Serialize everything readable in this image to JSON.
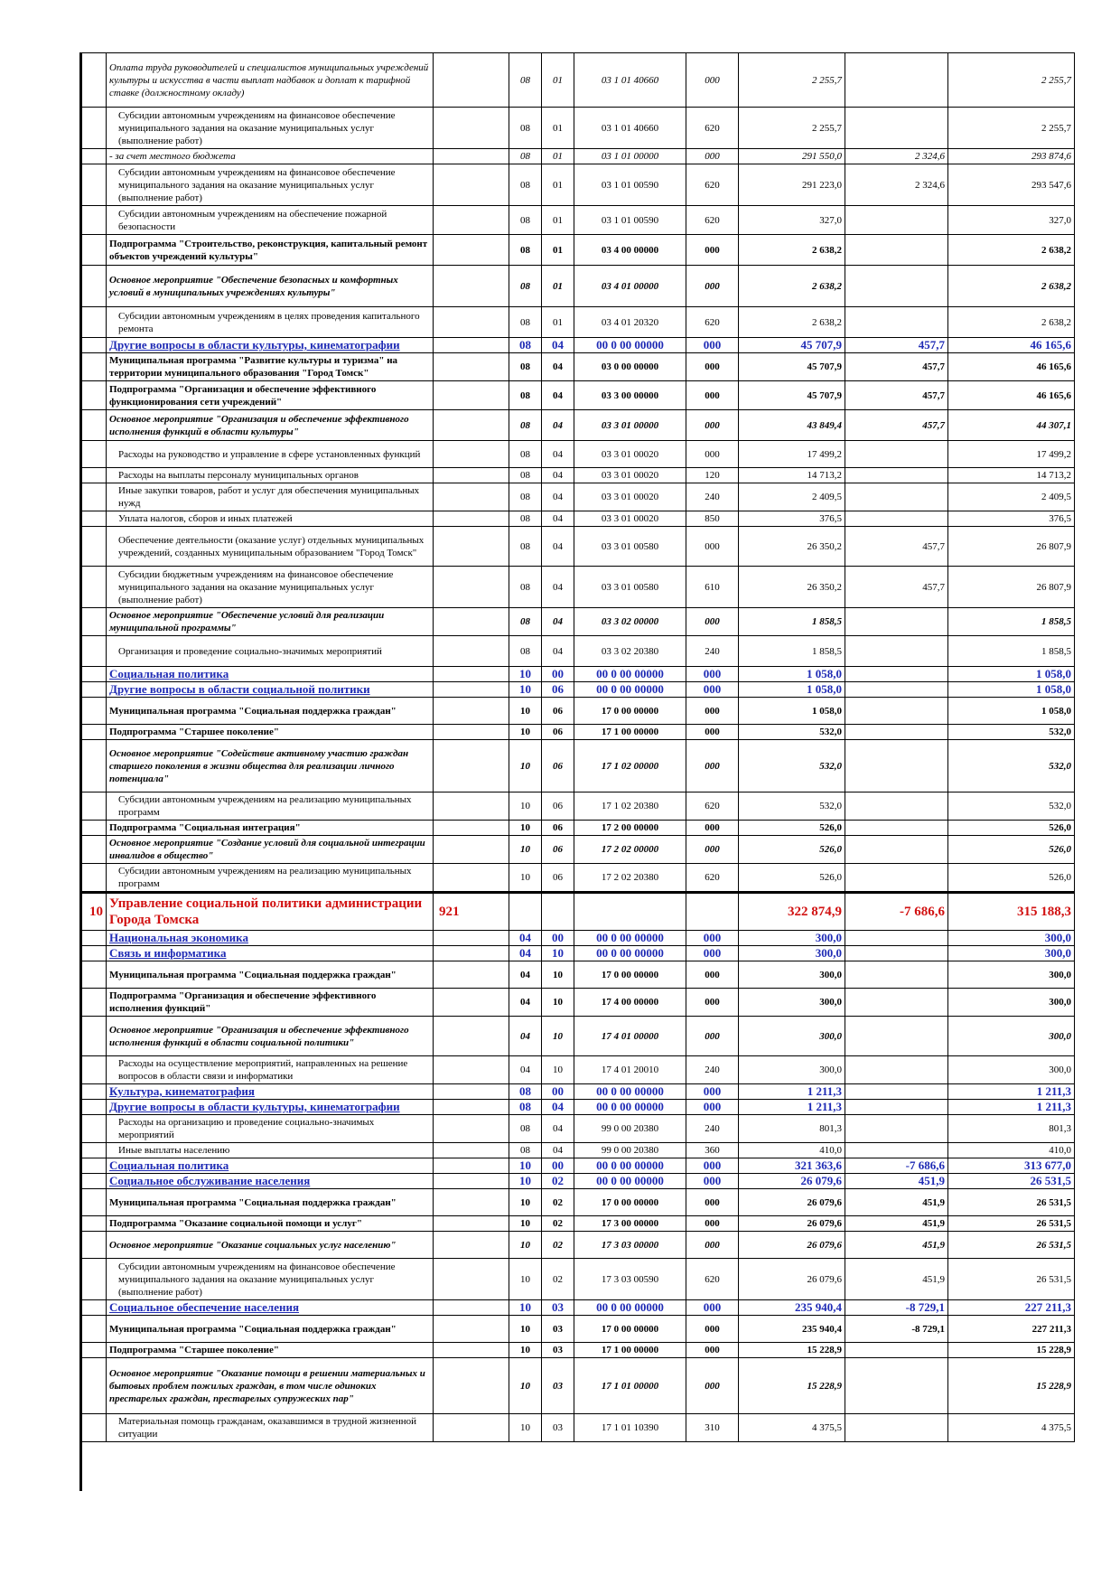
{
  "rows": [
    {
      "style": "it",
      "h": 60,
      "name": "Оплата труда руководителей и специалистов муниципальных учреждений культуры и искусства в части выплат надбавок и доплат к тарифной ставке (должностному окладу)",
      "sec": "08",
      "sub": "01",
      "csr": "03 1 01 40660",
      "vr": "000",
      "a1": "2 255,7",
      "a2": "",
      "a3": "2 255,7"
    },
    {
      "style": "norm",
      "h": 46,
      "name": "Субсидии автономным учреждениям на финансовое обеспечение муниципального задания на оказание муниципальных услуг (выполнение работ)",
      "sec": "08",
      "sub": "01",
      "csr": "03 1 01 40660",
      "vr": "620",
      "a1": "2 255,7",
      "a2": "",
      "a3": "2 255,7"
    },
    {
      "style": "it",
      "h": 16,
      "name": " - за счет местного бюджета",
      "sec": "08",
      "sub": "01",
      "csr": "03 1 01 00000",
      "vr": "000",
      "a1": "291 550,0",
      "a2": "2 324,6",
      "a3": "293 874,6"
    },
    {
      "style": "norm",
      "h": 46,
      "name": "Субсидии автономным учреждениям на финансовое обеспечение муниципального задания на оказание муниципальных услуг (выполнение работ)",
      "sec": "08",
      "sub": "01",
      "csr": "03 1 01 00590",
      "vr": "620",
      "a1": "291 223,0",
      "a2": "2 324,6",
      "a3": "293 547,6"
    },
    {
      "style": "norm",
      "h": 32,
      "name": "Субсидии автономным учреждениям на обеспечение пожарной безопасности",
      "sec": "08",
      "sub": "01",
      "csr": "03 1 01 00590",
      "vr": "620",
      "a1": "327,0",
      "a2": "",
      "a3": "327,0"
    },
    {
      "style": "bold",
      "h": 34,
      "name": "Подпрограмма \"Строительство, реконструкция, капитальный ремонт объектов учреждений культуры\"",
      "sec": "08",
      "sub": "01",
      "csr": "03 4 00 00000",
      "vr": "000",
      "a1": "2 638,2",
      "a2": "",
      "a3": "2 638,2"
    },
    {
      "style": "bi",
      "h": 46,
      "name": "Основное мероприятие \"Обеспечение безопасных и комфортных условий в муниципальных учреждениях культуры\"",
      "sec": "08",
      "sub": "01",
      "csr": "03 4 01 00000",
      "vr": "000",
      "a1": "2 638,2",
      "a2": "",
      "a3": "2 638,2"
    },
    {
      "style": "norm",
      "h": 34,
      "name": "Субсидии автономным учреждениям в целях проведения капитального ремонта",
      "sec": "08",
      "sub": "01",
      "csr": "03 4 01 20320",
      "vr": "620",
      "a1": "2 638,2",
      "a2": "",
      "a3": "2 638,2"
    },
    {
      "style": "blue",
      "h": 17,
      "name": "Другие вопросы в области культуры, кинематографии",
      "sec": "08",
      "sub": "04",
      "csr": "00 0 00 00000",
      "vr": "000",
      "a1": "45 707,9",
      "a2": "457,7",
      "a3": "46 165,6"
    },
    {
      "style": "bold",
      "h": 30,
      "name": "Муниципальная программа \"Развитие культуры и туризма\" на территории муниципального образования \"Город Томск\"",
      "sec": "08",
      "sub": "04",
      "csr": "03 0 00 00000",
      "vr": "000",
      "a1": "45 707,9",
      "a2": "457,7",
      "a3": "46 165,6"
    },
    {
      "style": "bold",
      "h": 32,
      "name": "Подпрограмма \"Организация и обеспечение эффективного функционирования сети учреждений\"",
      "sec": "08",
      "sub": "04",
      "csr": "03 3 00 00000",
      "vr": "000",
      "a1": "45 707,9",
      "a2": "457,7",
      "a3": "46 165,6"
    },
    {
      "style": "bi",
      "h": 34,
      "name": "Основное мероприятие \"Организация и обеспечение эффективного исполнения функций в области культуры\"",
      "sec": "08",
      "sub": "04",
      "csr": "03 3 01 00000",
      "vr": "000",
      "a1": "43 849,4",
      "a2": "457,7",
      "a3": "44 307,1"
    },
    {
      "style": "norm",
      "h": 30,
      "name": "Расходы на руководство и управление в сфере установленных функций",
      "sec": "08",
      "sub": "04",
      "csr": "03 3 01 00020",
      "vr": "000",
      "a1": "17 499,2",
      "a2": "",
      "a3": "17 499,2"
    },
    {
      "style": "norm",
      "h": 15,
      "name": "Расходы на выплаты персоналу муниципальных органов",
      "sec": "08",
      "sub": "04",
      "csr": "03 3 01 00020",
      "vr": "120",
      "a1": "14 713,2",
      "a2": "",
      "a3": "14 713,2"
    },
    {
      "style": "norm",
      "h": 30,
      "name": "Иные закупки товаров, работ и услуг для обеспечения муниципальных нужд",
      "sec": "08",
      "sub": "04",
      "csr": "03 3 01 00020",
      "vr": "240",
      "a1": "2 409,5",
      "a2": "",
      "a3": "2 409,5"
    },
    {
      "style": "norm",
      "h": 15,
      "name": "Уплата налогов, сборов и иных платежей",
      "sec": "08",
      "sub": "04",
      "csr": "03 3 01 00020",
      "vr": "850",
      "a1": "376,5",
      "a2": "",
      "a3": "376,5"
    },
    {
      "style": "norm",
      "h": 44,
      "name": "Обеспечение деятельности (оказание услуг) отдельных муниципальных учреждений, созданных муниципальным образованием \"Город Томск\"",
      "sec": "08",
      "sub": "04",
      "csr": "03 3 01 00580",
      "vr": "000",
      "a1": "26 350,2",
      "a2": "457,7",
      "a3": "26 807,9"
    },
    {
      "style": "norm",
      "h": 46,
      "name": "Субсидии бюджетным учреждениям на финансовое обеспечение муниципального задания на оказание муниципальных услуг (выполнение работ)",
      "sec": "08",
      "sub": "04",
      "csr": "03 3 01 00580",
      "vr": "610",
      "a1": "26 350,2",
      "a2": "457,7",
      "a3": "26 807,9"
    },
    {
      "style": "bi",
      "h": 30,
      "name": "Основное мероприятие \"Обеспечение условий для реализации муниципальной программы\"",
      "sec": "08",
      "sub": "04",
      "csr": "03 3 02 00000",
      "vr": "000",
      "a1": "1 858,5",
      "a2": "",
      "a3": "1 858,5"
    },
    {
      "style": "norm",
      "h": 34,
      "name": "Организация и проведение социально-значимых мероприятий",
      "sec": "08",
      "sub": "04",
      "csr": "03 3 02 20380",
      "vr": "240",
      "a1": "1 858,5",
      "a2": "",
      "a3": "1 858,5"
    },
    {
      "style": "blue",
      "h": 17,
      "name": "Социальная политика",
      "sec": "10",
      "sub": "00",
      "csr": "00 0 00 00000",
      "vr": "000",
      "a1": "1 058,0",
      "a2": "",
      "a3": "1 058,0"
    },
    {
      "style": "blue",
      "h": 17,
      "name": "Другие вопросы в области социальной политики",
      "sec": "10",
      "sub": "06",
      "csr": "00 0 00 00000",
      "vr": "000",
      "a1": "1 058,0",
      "a2": "",
      "a3": "1 058,0"
    },
    {
      "style": "bold",
      "h": 30,
      "name": "Муниципальная программа \"Социальная поддержка граждан\"",
      "sec": "10",
      "sub": "06",
      "csr": "17 0 00 00000",
      "vr": "000",
      "a1": "1 058,0",
      "a2": "",
      "a3": "1 058,0"
    },
    {
      "style": "bold",
      "h": 15,
      "name": "Подпрограмма \"Старшее поколение\"",
      "sec": "10",
      "sub": "06",
      "csr": "17 1 00 00000",
      "vr": "000",
      "a1": "532,0",
      "a2": "",
      "a3": "532,0"
    },
    {
      "style": "bi",
      "h": 58,
      "name": "Основное мероприятие \"Содействие активному участию граждан старшего поколения в жизни общества для реализации личного потенциала\"",
      "sec": "10",
      "sub": "06",
      "csr": "17 1 02 00000",
      "vr": "000",
      "a1": "532,0",
      "a2": "",
      "a3": "532,0"
    },
    {
      "style": "norm",
      "h": 30,
      "name": "Субсидии автономным учреждениям на реализацию муниципальных программ",
      "sec": "10",
      "sub": "06",
      "csr": "17 1 02 20380",
      "vr": "620",
      "a1": "532,0",
      "a2": "",
      "a3": "532,0"
    },
    {
      "style": "bold",
      "h": 15,
      "name": "Подпрограмма \"Социальная интеграция\"",
      "sec": "10",
      "sub": "06",
      "csr": "17 2 00 00000",
      "vr": "000",
      "a1": "526,0",
      "a2": "",
      "a3": "526,0"
    },
    {
      "style": "bi",
      "h": 30,
      "name": "Основное мероприятие \"Создание условий для социальной интеграции инвалидов в общество\"",
      "sec": "10",
      "sub": "06",
      "csr": "17 2 02 00000",
      "vr": "000",
      "a1": "526,0",
      "a2": "",
      "a3": "526,0"
    },
    {
      "style": "norm",
      "h": 30,
      "name": "Субсидии автономным учреждениям на реализацию муниципальных программ",
      "sec": "10",
      "sub": "06",
      "csr": "17 2 02 20380",
      "vr": "620",
      "a1": "526,0",
      "a2": "",
      "a3": "526,0"
    },
    {
      "style": "red",
      "h": 42,
      "idx": "10",
      "name": "Управление социальной политики администрации Города Томска",
      "code": "921",
      "sec": "",
      "sub": "",
      "csr": "",
      "vr": "",
      "a1": "322 874,9",
      "a2": "-7 686,6",
      "a3": "315 188,3"
    },
    {
      "style": "blue",
      "h": 17,
      "name": "Национальная экономика",
      "sec": "04",
      "sub": "00",
      "csr": "00 0 00 00000",
      "vr": "000",
      "a1": "300,0",
      "a2": "",
      "a3": "300,0"
    },
    {
      "style": "blue",
      "h": 17,
      "name": "Связь и информатика",
      "sec": "04",
      "sub": "10",
      "csr": "00 0 00 00000",
      "vr": "000",
      "a1": "300,0",
      "a2": "",
      "a3": "300,0"
    },
    {
      "style": "bold",
      "h": 30,
      "name": "Муниципальная программа \"Социальная поддержка граждан\"",
      "sec": "04",
      "sub": "10",
      "csr": "17 0 00 00000",
      "vr": "000",
      "a1": "300,0",
      "a2": "",
      "a3": "300,0"
    },
    {
      "style": "bold",
      "h": 30,
      "name": "Подпрограмма \"Организация и обеспечение эффективного исполнения функций\"",
      "sec": "04",
      "sub": "10",
      "csr": "17 4 00 00000",
      "vr": "000",
      "a1": "300,0",
      "a2": "",
      "a3": "300,0"
    },
    {
      "style": "bi",
      "h": 44,
      "name": "Основное мероприятие \"Организация и обеспечение эффективного исполнения функций в области социальной политики\"",
      "sec": "04",
      "sub": "10",
      "csr": "17 4 01 00000",
      "vr": "000",
      "a1": "300,0",
      "a2": "",
      "a3": "300,0"
    },
    {
      "style": "norm",
      "h": 30,
      "name": "Расходы на осуществление мероприятий, направленных на решение вопросов в области связи и информатики",
      "sec": "04",
      "sub": "10",
      "csr": "17 4 01 20010",
      "vr": "240",
      "a1": "300,0",
      "a2": "",
      "a3": "300,0"
    },
    {
      "style": "blue",
      "h": 17,
      "name": "Культура, кинематография",
      "sec": "08",
      "sub": "00",
      "csr": "00 0 00 00000",
      "vr": "000",
      "a1": "1 211,3",
      "a2": "",
      "a3": "1 211,3"
    },
    {
      "style": "blue",
      "h": 17,
      "name": "Другие вопросы в области культуры, кинематографии",
      "sec": "08",
      "sub": "04",
      "csr": "00 0 00 00000",
      "vr": "000",
      "a1": "1 211,3",
      "a2": "",
      "a3": "1 211,3"
    },
    {
      "style": "norm",
      "h": 30,
      "name": "Расходы на организацию и проведение социально-значимых мероприятий",
      "sec": "08",
      "sub": "04",
      "csr": "99 0 00 20380",
      "vr": "240",
      "a1": "801,3",
      "a2": "",
      "a3": "801,3"
    },
    {
      "style": "norm",
      "h": 15,
      "name": "Иные выплаты населению",
      "sec": "08",
      "sub": "04",
      "csr": "99 0 00 20380",
      "vr": "360",
      "a1": "410,0",
      "a2": "",
      "a3": "410,0"
    },
    {
      "style": "blue",
      "h": 17,
      "name": "Социальная политика",
      "sec": "10",
      "sub": "00",
      "csr": "00 0 00 00000",
      "vr": "000",
      "a1": "321 363,6",
      "a2": "-7 686,6",
      "a3": "313 677,0"
    },
    {
      "style": "blue",
      "h": 17,
      "name": "Социальное обслуживание населения",
      "sec": "10",
      "sub": "02",
      "csr": "00 0 00 00000",
      "vr": "000",
      "a1": "26 079,6",
      "a2": "451,9",
      "a3": "26 531,5"
    },
    {
      "style": "bold",
      "h": 30,
      "name": "Муниципальная программа \"Социальная поддержка граждан\"",
      "sec": "10",
      "sub": "02",
      "csr": "17 0 00 00000",
      "vr": "000",
      "a1": "26 079,6",
      "a2": "451,9",
      "a3": "26 531,5"
    },
    {
      "style": "bold",
      "h": 15,
      "name": "Подпрограмма \"Оказание социальной помощи и услуг\"",
      "sec": "10",
      "sub": "02",
      "csr": "17 3 00 00000",
      "vr": "000",
      "a1": "26 079,6",
      "a2": "451,9",
      "a3": "26 531,5"
    },
    {
      "style": "bi",
      "h": 30,
      "name": "Основное мероприятие \"Оказание социальных услуг населению\"",
      "sec": "10",
      "sub": "02",
      "csr": "17 3 03 00000",
      "vr": "000",
      "a1": "26 079,6",
      "a2": "451,9",
      "a3": "26 531,5"
    },
    {
      "style": "norm",
      "h": 46,
      "name": "Субсидии автономным учреждениям на финансовое обеспечение муниципального задания на оказание муниципальных услуг (выполнение работ)",
      "sec": "10",
      "sub": "02",
      "csr": "17 3 03 00590",
      "vr": "620",
      "a1": "26 079,6",
      "a2": "451,9",
      "a3": "26 531,5"
    },
    {
      "style": "blue",
      "h": 17,
      "name": "Социальное обеспечение населения",
      "sec": "10",
      "sub": "03",
      "csr": "00 0 00 00000",
      "vr": "000",
      "a1": "235 940,4",
      "a2": "-8 729,1",
      "a3": "227 211,3"
    },
    {
      "style": "bold",
      "h": 30,
      "name": "Муниципальная программа \"Социальная поддержка граждан\"",
      "sec": "10",
      "sub": "03",
      "csr": "17 0 00 00000",
      "vr": "000",
      "a1": "235 940,4",
      "a2": "-8 729,1",
      "a3": "227 211,3"
    },
    {
      "style": "bold",
      "h": 15,
      "name": "Подпрограмма \"Старшее поколение\"",
      "sec": "10",
      "sub": "03",
      "csr": "17 1 00 00000",
      "vr": "000",
      "a1": "15 228,9",
      "a2": "",
      "a3": "15 228,9"
    },
    {
      "style": "bi",
      "h": 62,
      "name": "Основное мероприятие \"Оказание помощи в решении материальных и бытовых проблем пожилых граждан, в том числе одиноких престарелых граждан, престарелых супружеских пар\"",
      "sec": "10",
      "sub": "03",
      "csr": "17 1 01 00000",
      "vr": "000",
      "a1": "15 228,9",
      "a2": "",
      "a3": "15 228,9"
    },
    {
      "style": "norm",
      "h": 30,
      "name": "Материальная помощь гражданам, оказавшимся в трудной жизненной ситуации",
      "sec": "10",
      "sub": "03",
      "csr": "17 1 01 10390",
      "vr": "310",
      "a1": "4 375,5",
      "a2": "",
      "a3": "4 375,5"
    }
  ]
}
